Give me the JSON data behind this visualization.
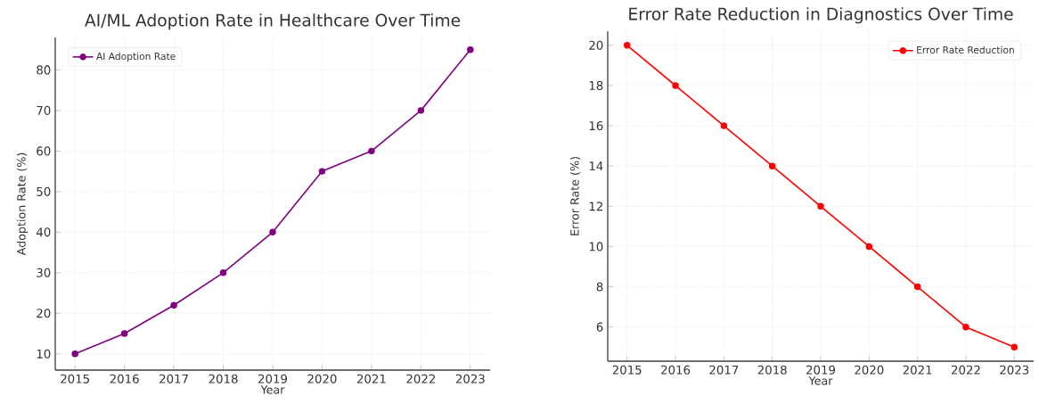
{
  "chart_data": [
    {
      "type": "line",
      "title": "AI/ML Adoption Rate in Healthcare Over Time",
      "xlabel": "Year",
      "ylabel": "Adoption Rate (%)",
      "x": [
        2015,
        2016,
        2017,
        2018,
        2019,
        2020,
        2021,
        2022,
        2023
      ],
      "series": [
        {
          "name": "AI Adoption Rate",
          "color": "#800080",
          "values": [
            10,
            15,
            22,
            30,
            40,
            55,
            60,
            70,
            85
          ]
        }
      ],
      "xlim": [
        2014.6,
        2023.4
      ],
      "ylim": [
        6,
        88
      ],
      "xticks": [
        2015,
        2016,
        2017,
        2018,
        2019,
        2020,
        2021,
        2022,
        2023
      ],
      "yticks": [
        10,
        20,
        30,
        40,
        50,
        60,
        70,
        80
      ],
      "grid": true,
      "legend": "top left",
      "marker": "circle",
      "line_style": "solid"
    },
    {
      "type": "line",
      "title": "Error Rate Reduction in Diagnostics Over Time",
      "xlabel": "Year",
      "ylabel": "Error Rate (%)",
      "x": [
        2015,
        2016,
        2017,
        2018,
        2019,
        2020,
        2021,
        2022,
        2023
      ],
      "series": [
        {
          "name": "Error Rate Reduction",
          "color": "#ff0000",
          "values": [
            20,
            18,
            16,
            14,
            12,
            10,
            8,
            6,
            5
          ]
        }
      ],
      "xlim": [
        2014.6,
        2023.4
      ],
      "ylim": [
        4.3,
        20.7
      ],
      "xticks": [
        2015,
        2016,
        2017,
        2018,
        2019,
        2020,
        2021,
        2022,
        2023
      ],
      "yticks": [
        6,
        8,
        10,
        12,
        14,
        16,
        18,
        20
      ],
      "grid": true,
      "legend": "top right",
      "marker": "circle",
      "line_style": "solid"
    }
  ]
}
